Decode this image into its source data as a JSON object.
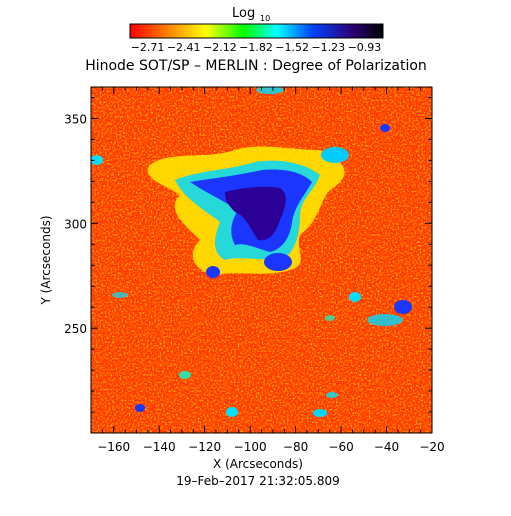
{
  "colorbar": {
    "title": "Log",
    "title_sub": "10",
    "ticks": [
      "−2.71",
      "−2.41",
      "−2.12",
      "−1.82",
      "−1.52",
      "−1.23",
      "−0.93"
    ],
    "colormap": [
      "#ff0000",
      "#ff7a00",
      "#ffff00",
      "#00ff00",
      "#00ffff",
      "#0044ff",
      "#2b0073",
      "#000000"
    ]
  },
  "plot": {
    "title": "Hinode SOT/SP – MERLIN : Degree of Polarization",
    "xlabel": "X (Arcseconds)",
    "ylabel": "Y (Arcseconds)",
    "x_range": [
      -170,
      -20
    ],
    "y_range": [
      200,
      365
    ],
    "xticks": [
      "−160",
      "−140",
      "−120",
      "−100",
      "−80",
      "−60",
      "−40",
      "−20"
    ],
    "yticks": [
      "250",
      "300",
      "350"
    ],
    "timestamp": "19–Feb–2017 21:32:05.809"
  }
}
